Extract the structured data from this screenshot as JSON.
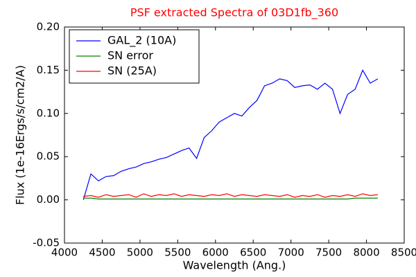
{
  "chart_data": {
    "type": "line",
    "title": "PSF extracted Spectra of 03D1fb_360",
    "xlabel": "Wavelength (Ang.)",
    "ylabel": "Flux (1e-16Ergs/s/cm2/A)",
    "x": [
      4250,
      4350,
      4450,
      4550,
      4650,
      4750,
      4850,
      4950,
      5050,
      5150,
      5250,
      5350,
      5450,
      5550,
      5650,
      5750,
      5850,
      5950,
      6050,
      6150,
      6250,
      6350,
      6450,
      6550,
      6650,
      6750,
      6850,
      6950,
      7050,
      7150,
      7250,
      7350,
      7450,
      7550,
      7650,
      7750,
      7850,
      7950,
      8050,
      8150
    ],
    "series": [
      {
        "name": "GAL_2 (10A)",
        "color": "#0000ff",
        "values": [
          0.0,
          0.03,
          0.022,
          0.027,
          0.028,
          0.033,
          0.036,
          0.038,
          0.042,
          0.044,
          0.047,
          0.049,
          0.053,
          0.057,
          0.06,
          0.048,
          0.072,
          0.08,
          0.09,
          0.095,
          0.1,
          0.097,
          0.107,
          0.115,
          0.132,
          0.135,
          0.14,
          0.138,
          0.13,
          0.132,
          0.133,
          0.128,
          0.135,
          0.128,
          0.1,
          0.122,
          0.128,
          0.15,
          0.135,
          0.14
        ]
      },
      {
        "name": "SN error",
        "color": "#008000",
        "values": [
          0.002,
          0.002,
          0.001,
          0.001,
          0.001,
          0.001,
          0.001,
          0.001,
          0.001,
          0.001,
          0.001,
          0.001,
          0.001,
          0.001,
          0.001,
          0.001,
          0.001,
          0.001,
          0.001,
          0.001,
          0.001,
          0.001,
          0.001,
          0.001,
          0.001,
          0.001,
          0.001,
          0.001,
          0.001,
          0.001,
          0.001,
          0.001,
          0.001,
          0.001,
          0.001,
          0.001,
          0.002,
          0.002,
          0.002,
          0.002
        ]
      },
      {
        "name": "SN (25A)",
        "color": "#ff0000",
        "values": [
          0.004,
          0.005,
          0.003,
          0.006,
          0.004,
          0.005,
          0.006,
          0.003,
          0.007,
          0.004,
          0.006,
          0.005,
          0.007,
          0.004,
          0.006,
          0.005,
          0.004,
          0.006,
          0.005,
          0.007,
          0.004,
          0.006,
          0.005,
          0.004,
          0.006,
          0.005,
          0.004,
          0.006,
          0.003,
          0.005,
          0.004,
          0.006,
          0.003,
          0.005,
          0.004,
          0.006,
          0.004,
          0.007,
          0.005,
          0.006
        ]
      }
    ],
    "xlim": [
      4000,
      8500
    ],
    "xticks": [
      4000,
      4500,
      5000,
      5500,
      6000,
      6500,
      7000,
      7500,
      8000,
      8500
    ],
    "ylim": [
      -0.05,
      0.2
    ],
    "yticks": [
      {
        "value": -0.05,
        "label": "-0.05"
      },
      {
        "value": 0,
        "label": "0.00"
      },
      {
        "value": 0.05,
        "label": "0.05"
      },
      {
        "value": 0.1,
        "label": "0.10"
      },
      {
        "value": 0.15,
        "label": "0.15"
      },
      {
        "value": 0.2,
        "label": "0.20"
      }
    ],
    "legend": "upper left",
    "grid": false
  }
}
